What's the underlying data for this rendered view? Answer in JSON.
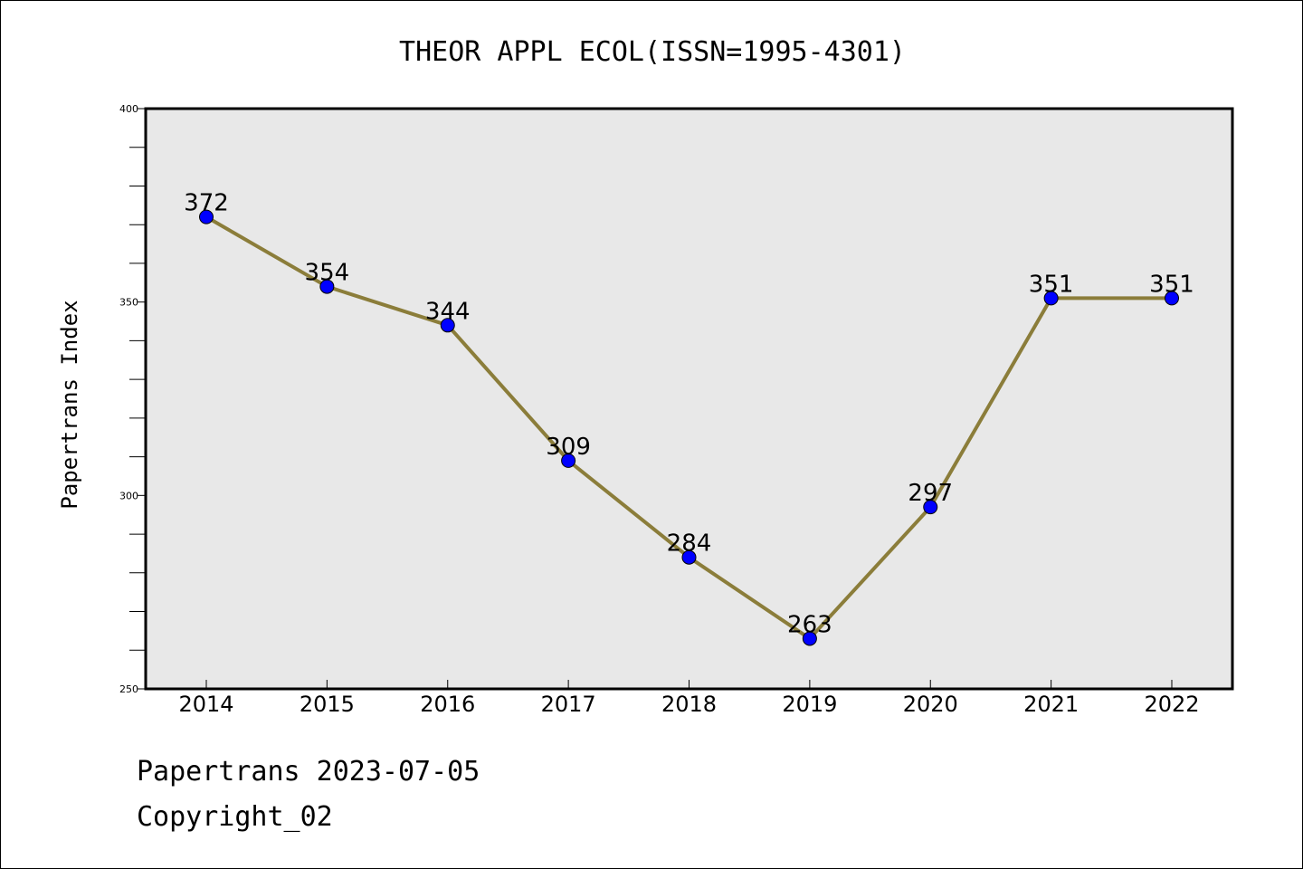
{
  "chart_data": {
    "type": "line",
    "title": "THEOR APPL ECOL(ISSN=1995-4301)",
    "ylabel": "Papertrans Index",
    "xlabel": "",
    "categories": [
      "2014",
      "2015",
      "2016",
      "2017",
      "2018",
      "2019",
      "2020",
      "2021",
      "2022"
    ],
    "values": [
      372,
      354,
      344,
      309,
      284,
      263,
      297,
      351,
      351
    ],
    "data_labels": [
      "372",
      "354",
      "344",
      "309",
      "284",
      "263",
      "297",
      "351",
      "351"
    ],
    "ylim": [
      250,
      400
    ],
    "yticks": [
      250,
      300,
      350,
      400
    ],
    "ytick_labels": [
      "250",
      "300",
      "350",
      "400"
    ],
    "y_minor_step": 10,
    "grid": false,
    "legend": "none",
    "colors": {
      "line": "#8b7d3a",
      "marker": "#0000ff",
      "plot_background": "#e8e8e8",
      "axis": "#000000"
    }
  },
  "footer": {
    "date_line": "Papertrans 2023-07-05",
    "copyright_line": "Copyright_02"
  }
}
